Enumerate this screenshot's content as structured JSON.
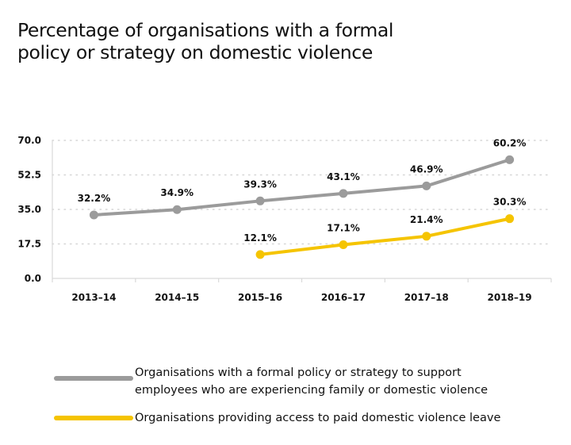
{
  "title_line1": "Percentage of organisations with a formal",
  "title_line2": "policy or strategy on domestic violence",
  "chart_data": {
    "type": "line",
    "title": "Percentage of organisations with a formal policy or strategy on domestic violence",
    "xlabel": "",
    "ylabel": "",
    "categories": [
      "2013–14",
      "2014–15",
      "2015–16",
      "2016–17",
      "2017–18",
      "2018–19"
    ],
    "yticks": [
      "0.0",
      "17.5",
      "35.0",
      "52.5",
      "70.0"
    ],
    "ytick_values": [
      0,
      17.5,
      35,
      52.5,
      70
    ],
    "ylim": [
      0,
      70
    ],
    "grid": "horizontal dotted",
    "legend_position": "bottom",
    "series": [
      {
        "name": "Organisations with a formal policy or strategy to support employees who are experiencing family or domestic violence",
        "color": "#9b9b9b",
        "values": [
          32.2,
          34.9,
          39.3,
          43.1,
          46.9,
          60.2
        ],
        "labels": [
          "32.2%",
          "34.9%",
          "39.3%",
          "43.1%",
          "46.9%",
          "60.2%"
        ]
      },
      {
        "name": "Organisations providing access to paid domestic violence leave",
        "color": "#f5c400",
        "values": [
          null,
          null,
          12.1,
          17.1,
          21.4,
          30.3
        ],
        "labels": [
          null,
          null,
          "12.1%",
          "17.1%",
          "21.4%",
          "30.3%"
        ]
      }
    ]
  },
  "legend": {
    "item1_line1": "Organisations with a formal policy or strategy to support",
    "item1_line2": "employees who are experiencing family or domestic violence",
    "item2": "Organisations providing access to paid domestic violence leave"
  }
}
